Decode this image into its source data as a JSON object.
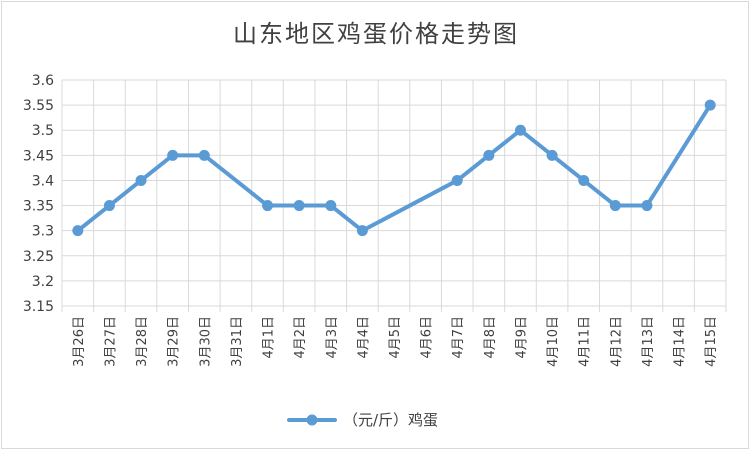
{
  "chart_data": {
    "type": "line",
    "title": "山东地区鸡蛋价格走势图",
    "categories": [
      "3月26日",
      "3月27日",
      "3月28日",
      "3月29日",
      "3月30日",
      "3月31日",
      "4月1日",
      "4月2日",
      "4月3日",
      "4月4日",
      "4月5日",
      "4月6日",
      "4月7日",
      "4月8日",
      "4月9日",
      "4月10日",
      "4月11日",
      "4月12日",
      "4月13日",
      "4月14日",
      "4月15日"
    ],
    "series": [
      {
        "name": "（元/斤）鸡蛋",
        "values": [
          3.3,
          3.35,
          3.4,
          3.45,
          3.45,
          null,
          3.35,
          3.35,
          3.35,
          3.3,
          null,
          null,
          3.4,
          3.45,
          3.5,
          3.45,
          3.4,
          3.35,
          3.35,
          null,
          3.55
        ]
      }
    ],
    "y_ticks": [
      "3.15",
      "3.2",
      "3.25",
      "3.3",
      "3.35",
      "3.4",
      "3.45",
      "3.5",
      "3.55",
      "3.6"
    ],
    "ylim": [
      3.15,
      3.6
    ],
    "xlabel": "",
    "ylabel": "",
    "grid": true,
    "legend_position": "bottom",
    "colors": {
      "series": "#5b9bd5",
      "grid": "#d9d9d9",
      "text": "#404040"
    }
  }
}
